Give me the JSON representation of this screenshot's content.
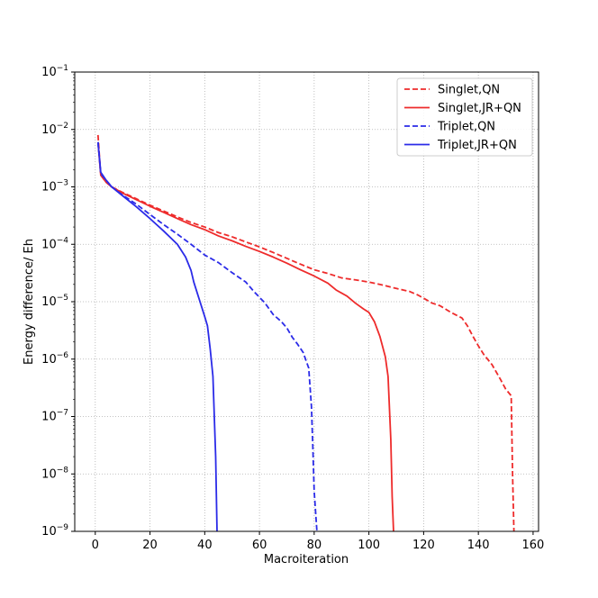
{
  "chart_data": {
    "type": "line",
    "xlabel": "Macroiteration",
    "ylabel": "Energy difference/ Eh",
    "xlim": [
      -7.5,
      162
    ],
    "ylim_exponent": [
      -9,
      -1
    ],
    "yscale": "log",
    "grid": true,
    "legend_position": "top-right",
    "x_ticks": [
      0,
      20,
      40,
      60,
      80,
      100,
      120,
      140,
      160
    ],
    "y_tick_exponents": [
      -9,
      -8,
      -7,
      -6,
      -5,
      -4,
      -3,
      -2,
      -1
    ],
    "series": [
      {
        "name": "Singlet,QN",
        "color": "#ee2b2b",
        "style": "dashed",
        "points": [
          [
            1,
            0.008
          ],
          [
            2,
            0.0016
          ],
          [
            4,
            0.0012
          ],
          [
            6,
            0.001
          ],
          [
            10,
            0.0008
          ],
          [
            15,
            0.00062
          ],
          [
            20,
            0.00048
          ],
          [
            25,
            0.00038
          ],
          [
            30,
            0.0003
          ],
          [
            35,
            0.00024
          ],
          [
            40,
            0.0002
          ],
          [
            45,
            0.00016
          ],
          [
            50,
            0.000135
          ],
          [
            55,
            0.00011
          ],
          [
            60,
            9e-05
          ],
          [
            65,
            7.2e-05
          ],
          [
            70,
            5.7e-05
          ],
          [
            75,
            4.5e-05
          ],
          [
            80,
            3.6e-05
          ],
          [
            85,
            3.1e-05
          ],
          [
            90,
            2.6e-05
          ],
          [
            95,
            2.4e-05
          ],
          [
            100,
            2.2e-05
          ],
          [
            105,
            1.95e-05
          ],
          [
            110,
            1.7e-05
          ],
          [
            115,
            1.5e-05
          ],
          [
            118,
            1.3e-05
          ],
          [
            120,
            1.15e-05
          ],
          [
            123,
            9.5e-06
          ],
          [
            126,
            8.5e-06
          ],
          [
            130,
            6.5e-06
          ],
          [
            134,
            5.2e-06
          ],
          [
            136,
            3.8e-06
          ],
          [
            138,
            2.5e-06
          ],
          [
            140,
            1.7e-06
          ],
          [
            142,
            1.2e-06
          ],
          [
            145,
            8e-07
          ],
          [
            148,
            4.5e-07
          ],
          [
            150,
            3e-07
          ],
          [
            152,
            2.3e-07
          ],
          [
            152.5,
            1e-08
          ],
          [
            153,
            1e-09
          ]
        ]
      },
      {
        "name": "Singlet,JR+QN",
        "color": "#ee2b2b",
        "style": "solid",
        "points": [
          [
            1,
            0.006
          ],
          [
            2,
            0.0016
          ],
          [
            4,
            0.0012
          ],
          [
            6,
            0.001
          ],
          [
            10,
            0.00078
          ],
          [
            15,
            0.0006
          ],
          [
            20,
            0.00046
          ],
          [
            25,
            0.00036
          ],
          [
            30,
            0.00028
          ],
          [
            35,
            0.00022
          ],
          [
            40,
            0.00018
          ],
          [
            45,
            0.00014
          ],
          [
            50,
            0.000115
          ],
          [
            55,
            9.2e-05
          ],
          [
            60,
            7.5e-05
          ],
          [
            65,
            6e-05
          ],
          [
            70,
            4.7e-05
          ],
          [
            75,
            3.6e-05
          ],
          [
            80,
            2.8e-05
          ],
          [
            85,
            2.1e-05
          ],
          [
            88,
            1.6e-05
          ],
          [
            92,
            1.25e-05
          ],
          [
            95,
            9.5e-06
          ],
          [
            98,
            7.5e-06
          ],
          [
            100,
            6.5e-06
          ],
          [
            102,
            4.5e-06
          ],
          [
            104,
            2.5e-06
          ],
          [
            106,
            1.1e-06
          ],
          [
            107,
            5e-07
          ],
          [
            108,
            4e-08
          ],
          [
            108.5,
            4e-09
          ],
          [
            109,
            1e-09
          ]
        ]
      },
      {
        "name": "Triplet,QN",
        "color": "#2b2be8",
        "style": "dashed",
        "points": [
          [
            1,
            0.006
          ],
          [
            2,
            0.0017
          ],
          [
            4,
            0.0013
          ],
          [
            6,
            0.001
          ],
          [
            10,
            0.00072
          ],
          [
            15,
            0.0005
          ],
          [
            20,
            0.00033
          ],
          [
            25,
            0.00022
          ],
          [
            30,
            0.00015
          ],
          [
            35,
            0.0001
          ],
          [
            40,
            6.5e-05
          ],
          [
            45,
            4.8e-05
          ],
          [
            50,
            3.2e-05
          ],
          [
            55,
            2.2e-05
          ],
          [
            58,
            1.5e-05
          ],
          [
            62,
            9.5e-06
          ],
          [
            65,
            6e-06
          ],
          [
            68,
            4.5e-06
          ],
          [
            70,
            3.5e-06
          ],
          [
            72,
            2.4e-06
          ],
          [
            74,
            1.8e-06
          ],
          [
            76,
            1.3e-06
          ],
          [
            77,
            9.5e-07
          ],
          [
            78,
            7e-07
          ],
          [
            79,
            1.5e-07
          ],
          [
            79.5,
            3e-08
          ],
          [
            80,
            5e-09
          ],
          [
            81,
            1e-09
          ]
        ]
      },
      {
        "name": "Triplet,JR+QN",
        "color": "#2b2be8",
        "style": "solid",
        "points": [
          [
            1,
            0.006
          ],
          [
            2,
            0.0018
          ],
          [
            4,
            0.0013
          ],
          [
            6,
            0.001
          ],
          [
            10,
            0.0007
          ],
          [
            15,
            0.00045
          ],
          [
            20,
            0.00028
          ],
          [
            25,
            0.00017
          ],
          [
            30,
            0.0001
          ],
          [
            33,
            6e-05
          ],
          [
            35,
            3.5e-05
          ],
          [
            36,
            2.2e-05
          ],
          [
            38,
            1.1e-05
          ],
          [
            40,
            5.5e-06
          ],
          [
            41,
            3.8e-06
          ],
          [
            42,
            1.5e-06
          ],
          [
            43,
            5e-07
          ],
          [
            44,
            2e-08
          ],
          [
            44.5,
            1e-09
          ]
        ]
      }
    ]
  }
}
